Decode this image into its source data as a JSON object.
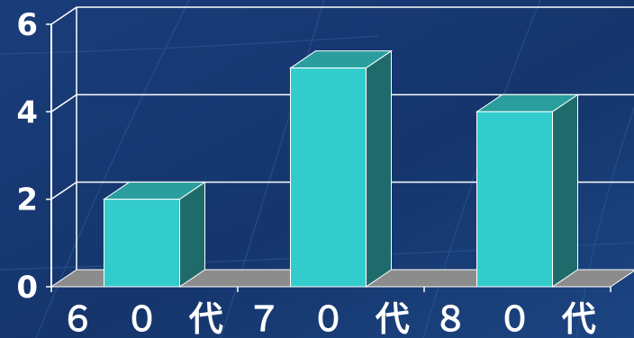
{
  "chart_data": {
    "type": "bar",
    "categories": [
      "６０代",
      "７０代",
      "８０代"
    ],
    "category_labels": [
      "６ ０ 代",
      "７ ０ 代",
      "８ ０ 代"
    ],
    "values": [
      2,
      5,
      4
    ],
    "ylim": [
      0,
      6
    ],
    "y_ticks": [
      "0",
      "2",
      "4",
      "6"
    ],
    "grid": true,
    "bar_style": "3d"
  },
  "colors": {
    "background": "#17366f",
    "bar_front": "#33cccc",
    "bar_top": "#2a9e9e",
    "bar_side": "#1f6b6b",
    "floor": "#8c8c8c",
    "gridline": "#ffffff",
    "text": "#ffffff"
  }
}
